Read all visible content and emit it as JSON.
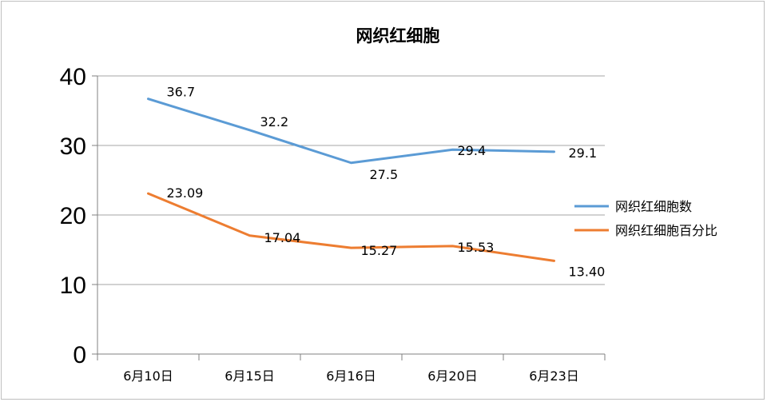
{
  "chart_data": {
    "type": "line",
    "title": "网织红细胞",
    "categories": [
      "6月10日",
      "6月15日",
      "6月16日",
      "6月20日",
      "6月23日"
    ],
    "series": [
      {
        "name": "网织红细胞数",
        "values": [
          36.7,
          32.2,
          27.5,
          29.4,
          29.1
        ],
        "labels": [
          "36.7",
          "32.2",
          "27.5",
          "29.4",
          "29.1"
        ],
        "color": "#5b9bd5"
      },
      {
        "name": "网织红细胞百分比",
        "values": [
          23.09,
          17.04,
          15.27,
          15.53,
          13.4
        ],
        "labels": [
          "23.09",
          "17.04",
          "15.27",
          "15.53",
          "13.40"
        ],
        "color": "#ed7d31"
      }
    ],
    "yticks": [
      "0",
      "10",
      "20",
      "30",
      "40"
    ],
    "ylim": [
      0,
      40
    ],
    "grid": true,
    "legend": "right"
  }
}
